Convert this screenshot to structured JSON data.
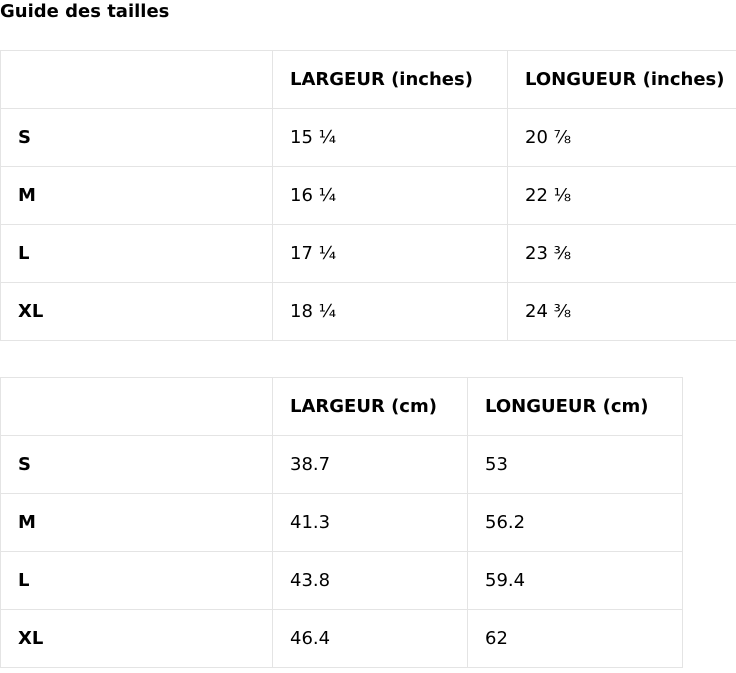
{
  "title": "Guide des tailles",
  "inches_table": {
    "headers": [
      "",
      "LARGEUR (inches)",
      "LONGUEUR (inches)"
    ],
    "rows": [
      {
        "size": "S",
        "width": "15 ¼",
        "length": "20 ⅞"
      },
      {
        "size": "M",
        "width": "16 ¼",
        "length": "22 ⅛"
      },
      {
        "size": "L",
        "width": "17 ¼",
        "length": "23 ⅜"
      },
      {
        "size": "XL",
        "width": "18 ¼",
        "length": "24 ⅜"
      }
    ]
  },
  "cm_table": {
    "headers": [
      "",
      "LARGEUR (cm)",
      "LONGUEUR (cm)"
    ],
    "rows": [
      {
        "size": "S",
        "width": "38.7",
        "length": "53"
      },
      {
        "size": "M",
        "width": "41.3",
        "length": "56.2"
      },
      {
        "size": "L",
        "width": "43.8",
        "length": "59.4"
      },
      {
        "size": "XL",
        "width": "46.4",
        "length": "62"
      }
    ]
  }
}
